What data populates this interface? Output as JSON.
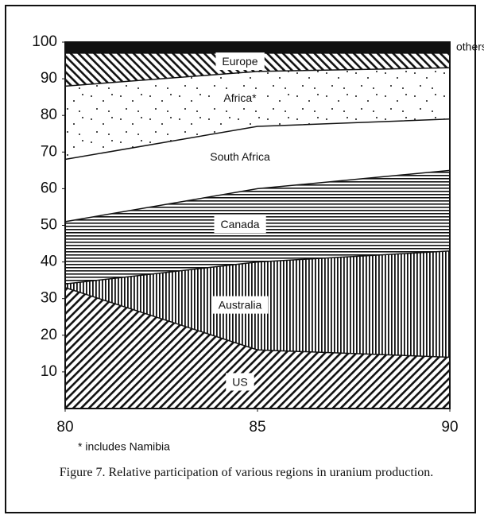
{
  "chart_data": {
    "type": "stacked_area",
    "x": [
      80,
      85,
      90
    ],
    "xlim": [
      80,
      90
    ],
    "xticks": [
      80,
      85,
      90
    ],
    "ylim": [
      0,
      100
    ],
    "yticks": [
      10,
      20,
      30,
      40,
      50,
      60,
      70,
      80,
      90,
      100
    ],
    "series": [
      {
        "name": "US",
        "pattern": "diagonal-back",
        "values": [
          33,
          16,
          14
        ]
      },
      {
        "name": "Australia",
        "pattern": "vertical",
        "values": [
          1,
          24,
          29
        ]
      },
      {
        "name": "Canada",
        "pattern": "horizontal",
        "values": [
          17,
          20,
          22
        ]
      },
      {
        "name": "South Africa",
        "pattern": "none",
        "values": [
          17,
          17,
          14
        ]
      },
      {
        "name": "Africa*",
        "pattern": "dots",
        "values": [
          20,
          15,
          14
        ]
      },
      {
        "name": "Europe",
        "pattern": "diagonal",
        "values": [
          9,
          5,
          4
        ]
      },
      {
        "name": "others",
        "pattern": "solid",
        "values": [
          3,
          3,
          3
        ]
      }
    ],
    "footnote": "* includes Namibia",
    "caption": "Figure 7. Relative participation of various regions in uranium production."
  }
}
